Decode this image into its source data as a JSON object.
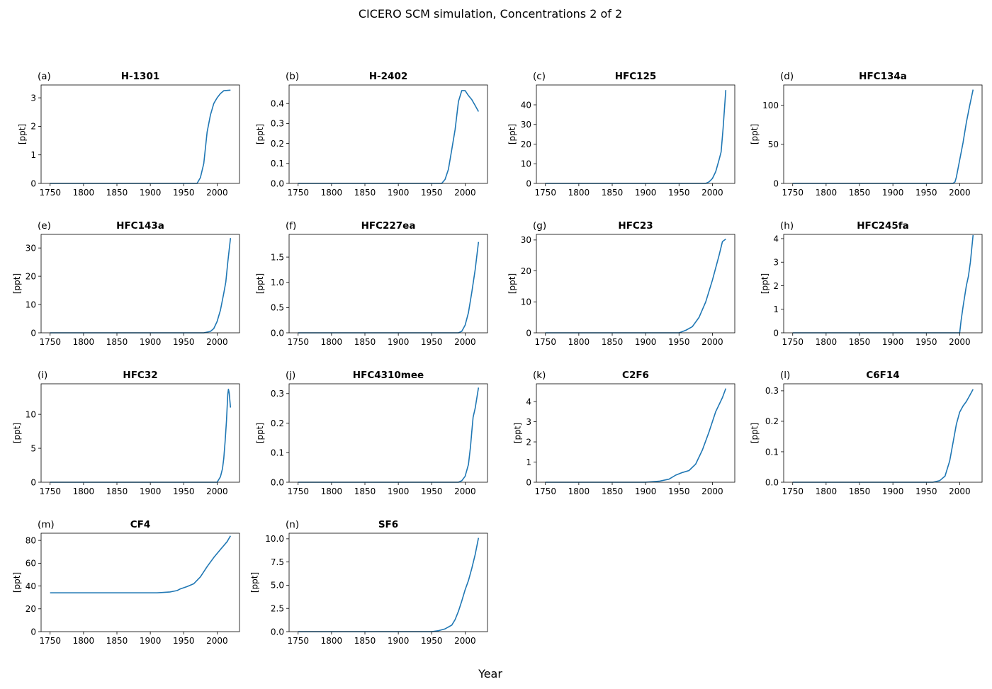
{
  "chart_data": {
    "type": "line",
    "title": "CICERO SCM simulation, Concentrations 2 of 2",
    "xlabel": "Year",
    "line_color": "#1f77b4",
    "grid": false,
    "xlim": [
      1736.5,
      2033.5
    ],
    "xticks": [
      "1750",
      "1800",
      "1850",
      "1900",
      "1950",
      "2000"
    ],
    "panels": [
      {
        "label": "(a)",
        "title": "H-1301",
        "ylabel": "[ppt]",
        "ylim": [
          0,
          3.45
        ],
        "yticks": [
          "0",
          "1",
          "2",
          "3"
        ],
        "x": [
          1750,
          1970,
          1975,
          1980,
          1985,
          1990,
          1995,
          2000,
          2005,
          2010,
          2020
        ],
        "y": [
          0,
          0,
          0.2,
          0.7,
          1.8,
          2.4,
          2.8,
          3.0,
          3.15,
          3.25,
          3.27
        ]
      },
      {
        "label": "(b)",
        "title": "H-2402",
        "ylabel": "[ppt]",
        "ylim": [
          0,
          0.493
        ],
        "yticks": [
          "0.0",
          "0.1",
          "0.2",
          "0.3",
          "0.4"
        ],
        "x": [
          1750,
          1965,
          1970,
          1975,
          1980,
          1985,
          1990,
          1995,
          2000,
          2005,
          2010,
          2015,
          2020
        ],
        "y": [
          0,
          0,
          0.02,
          0.07,
          0.17,
          0.27,
          0.41,
          0.465,
          0.465,
          0.44,
          0.42,
          0.39,
          0.36
        ]
      },
      {
        "label": "(c)",
        "title": "HFC125",
        "ylabel": "[ppt]",
        "ylim": [
          0,
          50.1
        ],
        "yticks": [
          "0",
          "10",
          "20",
          "30",
          "40"
        ],
        "x": [
          1750,
          1990,
          1995,
          2000,
          2005,
          2010,
          2013,
          2016,
          2020
        ],
        "y": [
          0,
          0,
          0.8,
          2.5,
          6,
          12,
          16,
          28,
          47.5
        ]
      },
      {
        "label": "(d)",
        "title": "HFC134a",
        "ylabel": "[ppt]",
        "ylim": [
          0,
          126
        ],
        "yticks": [
          "0",
          "50",
          "100"
        ],
        "x": [
          1750,
          1990,
          1993,
          1995,
          2000,
          2005,
          2010,
          2015,
          2020
        ],
        "y": [
          0,
          0,
          2,
          8,
          30,
          52,
          78,
          100,
          120
        ]
      },
      {
        "label": "(e)",
        "title": "HFC143a",
        "ylabel": "[ppt]",
        "ylim": [
          0,
          34.8
        ],
        "yticks": [
          "0",
          "10",
          "20",
          "30"
        ],
        "x": [
          1750,
          1980,
          1990,
          1995,
          2000,
          2005,
          2010,
          2013,
          2016,
          2020
        ],
        "y": [
          0,
          0,
          0.5,
          1.5,
          4,
          8,
          14,
          18,
          25,
          33.5
        ]
      },
      {
        "label": "(f)",
        "title": "HFC227ea",
        "ylabel": "[ppt]",
        "ylim": [
          0,
          1.95
        ],
        "yticks": [
          "0.0",
          "0.5",
          "1.0",
          "1.5"
        ],
        "x": [
          1750,
          1990,
          1995,
          2000,
          2005,
          2010,
          2015,
          2020
        ],
        "y": [
          0,
          0,
          0.03,
          0.15,
          0.4,
          0.8,
          1.25,
          1.8
        ]
      },
      {
        "label": "(g)",
        "title": "HFC23",
        "ylabel": "[ppt]",
        "ylim": [
          0,
          31.8
        ],
        "yticks": [
          "0",
          "10",
          "20",
          "30"
        ],
        "x": [
          1750,
          1950,
          1960,
          1970,
          1980,
          1990,
          2000,
          2005,
          2010,
          2015,
          2020
        ],
        "y": [
          0,
          0,
          0.8,
          2,
          5,
          10,
          17,
          21,
          25,
          29.5,
          30.3
        ]
      },
      {
        "label": "(h)",
        "title": "HFC245fa",
        "ylabel": "[ppt]",
        "ylim": [
          0,
          4.18
        ],
        "yticks": [
          "0",
          "1",
          "2",
          "3",
          "4"
        ],
        "x": [
          1750,
          2000,
          2002,
          2005,
          2010,
          2013,
          2016,
          2020
        ],
        "y": [
          0,
          0,
          0.5,
          1.1,
          2,
          2.4,
          3,
          4.15
        ]
      },
      {
        "label": "(i)",
        "title": "HFC32",
        "ylabel": "[ppt]",
        "ylim": [
          0,
          14.5
        ],
        "yticks": [
          "0",
          "5",
          "10"
        ],
        "x": [
          1750,
          2000,
          2005,
          2008,
          2010,
          2012,
          2014,
          2016,
          2017,
          2018,
          2020
        ],
        "y": [
          0,
          0,
          0.8,
          2,
          3.5,
          6,
          9,
          13,
          13.7,
          13.2,
          11
        ]
      },
      {
        "label": "(j)",
        "title": "HFC4310mee",
        "ylabel": "[ppt]",
        "ylim": [
          0,
          0.333
        ],
        "yticks": [
          "0.0",
          "0.1",
          "0.2",
          "0.3"
        ],
        "x": [
          1750,
          1990,
          1995,
          2000,
          2005,
          2008,
          2010,
          2012,
          2015,
          2020
        ],
        "y": [
          0,
          0,
          0.005,
          0.02,
          0.06,
          0.12,
          0.17,
          0.22,
          0.25,
          0.32
        ]
      },
      {
        "label": "(k)",
        "title": "C2F6",
        "ylabel": "[ppt]",
        "ylim": [
          0,
          4.88
        ],
        "yticks": [
          "0",
          "1",
          "2",
          "3",
          "4"
        ],
        "x": [
          1750,
          1900,
          1920,
          1935,
          1945,
          1955,
          1965,
          1975,
          1985,
          1995,
          2005,
          2015,
          2020
        ],
        "y": [
          0,
          0,
          0.05,
          0.15,
          0.35,
          0.48,
          0.58,
          0.9,
          1.6,
          2.5,
          3.5,
          4.2,
          4.65
        ]
      },
      {
        "label": "(l)",
        "title": "C6F14",
        "ylabel": "[ppt]",
        "ylim": [
          0,
          0.323
        ],
        "yticks": [
          "0.0",
          "0.1",
          "0.2",
          "0.3"
        ],
        "x": [
          1750,
          1960,
          1970,
          1978,
          1985,
          1990,
          1995,
          2000,
          2005,
          2010,
          2015,
          2020
        ],
        "y": [
          0,
          0,
          0.005,
          0.02,
          0.07,
          0.13,
          0.19,
          0.23,
          0.25,
          0.265,
          0.285,
          0.305
        ]
      },
      {
        "label": "(m)",
        "title": "CF4",
        "ylabel": "[ppt]",
        "ylim": [
          0,
          86.3
        ],
        "yticks": [
          "0",
          "20",
          "40",
          "60",
          "80"
        ],
        "x": [
          1750,
          1910,
          1930,
          1940,
          1945,
          1955,
          1965,
          1975,
          1985,
          1995,
          2005,
          2015,
          2020
        ],
        "y": [
          34,
          34,
          34.8,
          36,
          37.5,
          39.5,
          42,
          48,
          57,
          65,
          72,
          79,
          84
        ]
      },
      {
        "label": "(n)",
        "title": "SF6",
        "ylabel": "[ppt]",
        "ylim": [
          0,
          10.6
        ],
        "yticks": [
          "0.0",
          "2.5",
          "5.0",
          "7.5",
          "10.0"
        ],
        "x": [
          1750,
          1950,
          1960,
          1970,
          1980,
          1985,
          1990,
          1995,
          2000,
          2005,
          2010,
          2015,
          2020
        ],
        "y": [
          0,
          0,
          0.1,
          0.3,
          0.7,
          1.3,
          2.2,
          3.3,
          4.5,
          5.5,
          6.8,
          8.3,
          10.1
        ]
      }
    ]
  }
}
